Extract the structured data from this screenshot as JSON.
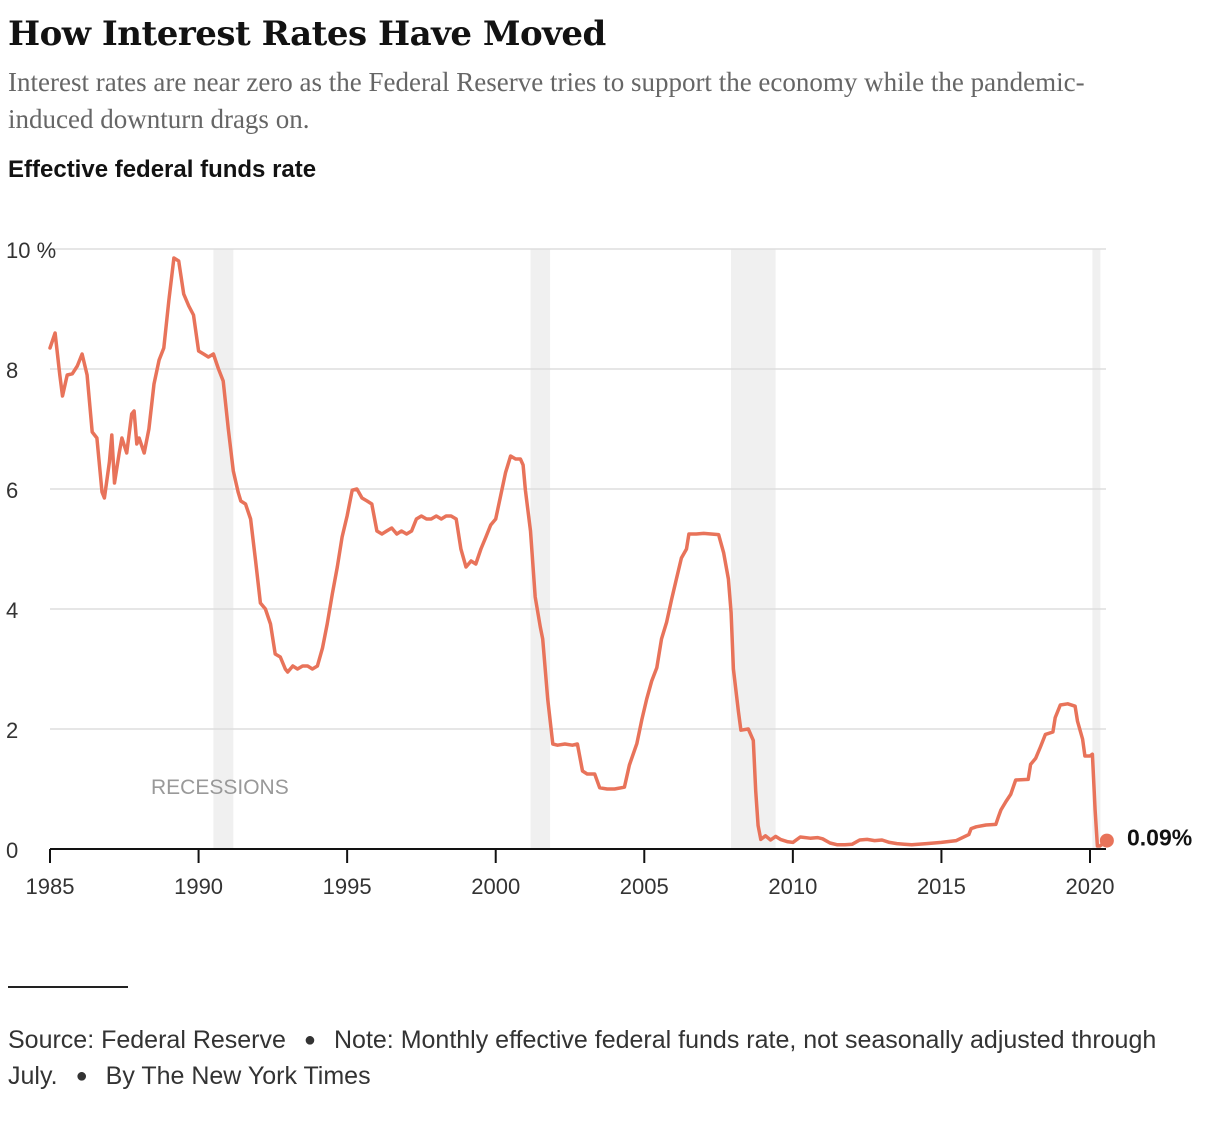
{
  "title": "How Interest Rates Have Moved",
  "subtitle": "Interest rates are near zero as the Federal Reserve tries to support the economy while the pandemic-induced downturn drags on.",
  "chart_label": "Effective federal funds rate",
  "footer": {
    "source": "Source: Federal Reserve",
    "note": "Note: Monthly effective federal funds rate, not seasonally adjusted through July.",
    "byline": "By The New York Times"
  },
  "colors": {
    "line": "#e8735a",
    "recession_band": "#f0f0f0",
    "grid": "#dddddd",
    "axis": "#121212"
  },
  "chart_data": {
    "type": "line",
    "title": "Effective federal funds rate",
    "xlabel": "",
    "ylabel": "",
    "xlim": [
      1985,
      2020.58
    ],
    "ylim": [
      0,
      10
    ],
    "x_ticks": [
      {
        "value": 1985,
        "label": "1985"
      },
      {
        "value": 1990,
        "label": "1990"
      },
      {
        "value": 1995,
        "label": "1995"
      },
      {
        "value": 2000,
        "label": "2000"
      },
      {
        "value": 2005,
        "label": "2005"
      },
      {
        "value": 2010,
        "label": "2010"
      },
      {
        "value": 2015,
        "label": "2015"
      },
      {
        "value": 2020,
        "label": "2020"
      }
    ],
    "y_ticks": [
      {
        "value": 0,
        "label": "0"
      },
      {
        "value": 2,
        "label": "2"
      },
      {
        "value": 4,
        "label": "4"
      },
      {
        "value": 6,
        "label": "6"
      },
      {
        "value": 8,
        "label": "8"
      },
      {
        "value": 10,
        "label": "10 %"
      }
    ],
    "grid": true,
    "recessions_label": "RECESSIONS",
    "recessions": [
      {
        "start": 1990.5,
        "end": 1991.17
      },
      {
        "start": 2001.17,
        "end": 2001.83
      },
      {
        "start": 2007.92,
        "end": 2009.42
      },
      {
        "start": 2020.08,
        "end": 2020.33
      }
    ],
    "end_label": "0.09%",
    "series": [
      {
        "points": [
          [
            1985.0,
            8.35
          ],
          [
            1985.17,
            8.6
          ],
          [
            1985.33,
            7.9
          ],
          [
            1985.42,
            7.55
          ],
          [
            1985.58,
            7.9
          ],
          [
            1985.75,
            7.92
          ],
          [
            1985.92,
            8.05
          ],
          [
            1986.08,
            8.25
          ],
          [
            1986.25,
            7.9
          ],
          [
            1986.42,
            6.95
          ],
          [
            1986.58,
            6.85
          ],
          [
            1986.75,
            5.95
          ],
          [
            1986.83,
            5.85
          ],
          [
            1987.0,
            6.45
          ],
          [
            1987.08,
            6.9
          ],
          [
            1987.17,
            6.1
          ],
          [
            1987.33,
            6.6
          ],
          [
            1987.42,
            6.85
          ],
          [
            1987.58,
            6.6
          ],
          [
            1987.75,
            7.25
          ],
          [
            1987.83,
            7.3
          ],
          [
            1987.92,
            6.75
          ],
          [
            1988.0,
            6.85
          ],
          [
            1988.17,
            6.6
          ],
          [
            1988.33,
            7.0
          ],
          [
            1988.5,
            7.75
          ],
          [
            1988.67,
            8.15
          ],
          [
            1988.83,
            8.35
          ],
          [
            1989.0,
            9.15
          ],
          [
            1989.17,
            9.85
          ],
          [
            1989.33,
            9.8
          ],
          [
            1989.5,
            9.25
          ],
          [
            1989.67,
            9.05
          ],
          [
            1989.83,
            8.9
          ],
          [
            1990.0,
            8.3
          ],
          [
            1990.17,
            8.25
          ],
          [
            1990.33,
            8.2
          ],
          [
            1990.5,
            8.25
          ],
          [
            1990.67,
            8.0
          ],
          [
            1990.83,
            7.8
          ],
          [
            1991.0,
            7.0
          ],
          [
            1991.17,
            6.3
          ],
          [
            1991.33,
            5.95
          ],
          [
            1991.42,
            5.8
          ],
          [
            1991.58,
            5.75
          ],
          [
            1991.75,
            5.5
          ],
          [
            1991.92,
            4.8
          ],
          [
            1992.08,
            4.1
          ],
          [
            1992.25,
            4.0
          ],
          [
            1992.42,
            3.75
          ],
          [
            1992.58,
            3.25
          ],
          [
            1992.75,
            3.2
          ],
          [
            1992.92,
            3.0
          ],
          [
            1993.0,
            2.95
          ],
          [
            1993.17,
            3.05
          ],
          [
            1993.33,
            3.0
          ],
          [
            1993.5,
            3.05
          ],
          [
            1993.67,
            3.05
          ],
          [
            1993.83,
            3.0
          ],
          [
            1994.0,
            3.05
          ],
          [
            1994.17,
            3.35
          ],
          [
            1994.33,
            3.75
          ],
          [
            1994.5,
            4.25
          ],
          [
            1994.67,
            4.7
          ],
          [
            1994.83,
            5.2
          ],
          [
            1995.0,
            5.55
          ],
          [
            1995.17,
            5.98
          ],
          [
            1995.33,
            6.0
          ],
          [
            1995.5,
            5.85
          ],
          [
            1995.67,
            5.8
          ],
          [
            1995.83,
            5.75
          ],
          [
            1996.0,
            5.3
          ],
          [
            1996.17,
            5.25
          ],
          [
            1996.33,
            5.3
          ],
          [
            1996.5,
            5.35
          ],
          [
            1996.67,
            5.25
          ],
          [
            1996.83,
            5.3
          ],
          [
            1997.0,
            5.25
          ],
          [
            1997.17,
            5.3
          ],
          [
            1997.33,
            5.5
          ],
          [
            1997.5,
            5.55
          ],
          [
            1997.67,
            5.5
          ],
          [
            1997.83,
            5.5
          ],
          [
            1998.0,
            5.55
          ],
          [
            1998.17,
            5.5
          ],
          [
            1998.33,
            5.55
          ],
          [
            1998.5,
            5.55
          ],
          [
            1998.67,
            5.5
          ],
          [
            1998.83,
            5.0
          ],
          [
            1999.0,
            4.7
          ],
          [
            1999.17,
            4.8
          ],
          [
            1999.33,
            4.75
          ],
          [
            1999.5,
            5.0
          ],
          [
            1999.67,
            5.2
          ],
          [
            1999.83,
            5.4
          ],
          [
            2000.0,
            5.5
          ],
          [
            2000.17,
            5.9
          ],
          [
            2000.33,
            6.27
          ],
          [
            2000.5,
            6.55
          ],
          [
            2000.67,
            6.5
          ],
          [
            2000.83,
            6.5
          ],
          [
            2000.92,
            6.4
          ],
          [
            2001.0,
            5.98
          ],
          [
            2001.17,
            5.3
          ],
          [
            2001.33,
            4.2
          ],
          [
            2001.5,
            3.7
          ],
          [
            2001.58,
            3.5
          ],
          [
            2001.75,
            2.5
          ],
          [
            2001.92,
            1.75
          ],
          [
            2002.08,
            1.73
          ],
          [
            2002.33,
            1.75
          ],
          [
            2002.58,
            1.73
          ],
          [
            2002.75,
            1.75
          ],
          [
            2002.92,
            1.3
          ],
          [
            2003.08,
            1.25
          ],
          [
            2003.33,
            1.25
          ],
          [
            2003.5,
            1.02
          ],
          [
            2003.75,
            1.0
          ],
          [
            2004.0,
            1.0
          ],
          [
            2004.33,
            1.03
          ],
          [
            2004.5,
            1.4
          ],
          [
            2004.75,
            1.76
          ],
          [
            2004.92,
            2.16
          ],
          [
            2005.08,
            2.5
          ],
          [
            2005.25,
            2.8
          ],
          [
            2005.42,
            3.02
          ],
          [
            2005.58,
            3.5
          ],
          [
            2005.75,
            3.78
          ],
          [
            2005.92,
            4.16
          ],
          [
            2006.08,
            4.5
          ],
          [
            2006.25,
            4.85
          ],
          [
            2006.42,
            5.0
          ],
          [
            2006.5,
            5.25
          ],
          [
            2006.75,
            5.25
          ],
          [
            2007.0,
            5.26
          ],
          [
            2007.25,
            5.25
          ],
          [
            2007.5,
            5.24
          ],
          [
            2007.67,
            4.94
          ],
          [
            2007.83,
            4.5
          ],
          [
            2007.92,
            3.94
          ],
          [
            2008.0,
            3.0
          ],
          [
            2008.17,
            2.28
          ],
          [
            2008.25,
            1.98
          ],
          [
            2008.5,
            2.0
          ],
          [
            2008.67,
            1.81
          ],
          [
            2008.75,
            0.97
          ],
          [
            2008.83,
            0.39
          ],
          [
            2008.92,
            0.16
          ],
          [
            2009.08,
            0.22
          ],
          [
            2009.25,
            0.15
          ],
          [
            2009.42,
            0.21
          ],
          [
            2009.58,
            0.16
          ],
          [
            2009.83,
            0.12
          ],
          [
            2010.0,
            0.11
          ],
          [
            2010.25,
            0.2
          ],
          [
            2010.58,
            0.18
          ],
          [
            2010.83,
            0.19
          ],
          [
            2011.0,
            0.17
          ],
          [
            2011.25,
            0.1
          ],
          [
            2011.5,
            0.07
          ],
          [
            2011.75,
            0.07
          ],
          [
            2012.0,
            0.08
          ],
          [
            2012.25,
            0.15
          ],
          [
            2012.5,
            0.16
          ],
          [
            2012.75,
            0.14
          ],
          [
            2013.0,
            0.15
          ],
          [
            2013.25,
            0.11
          ],
          [
            2013.5,
            0.09
          ],
          [
            2013.75,
            0.08
          ],
          [
            2014.0,
            0.07
          ],
          [
            2014.5,
            0.09
          ],
          [
            2015.0,
            0.11
          ],
          [
            2015.5,
            0.14
          ],
          [
            2015.92,
            0.24
          ],
          [
            2016.0,
            0.34
          ],
          [
            2016.17,
            0.37
          ],
          [
            2016.5,
            0.4
          ],
          [
            2016.83,
            0.41
          ],
          [
            2016.92,
            0.54
          ],
          [
            2017.0,
            0.65
          ],
          [
            2017.17,
            0.79
          ],
          [
            2017.33,
            0.91
          ],
          [
            2017.5,
            1.15
          ],
          [
            2017.92,
            1.16
          ],
          [
            2018.0,
            1.41
          ],
          [
            2018.17,
            1.51
          ],
          [
            2018.33,
            1.7
          ],
          [
            2018.5,
            1.91
          ],
          [
            2018.75,
            1.95
          ],
          [
            2018.83,
            2.19
          ],
          [
            2019.0,
            2.4
          ],
          [
            2019.25,
            2.42
          ],
          [
            2019.5,
            2.38
          ],
          [
            2019.58,
            2.13
          ],
          [
            2019.75,
            1.83
          ],
          [
            2019.83,
            1.55
          ],
          [
            2020.0,
            1.55
          ],
          [
            2020.08,
            1.58
          ],
          [
            2020.17,
            0.65
          ],
          [
            2020.25,
            0.05
          ],
          [
            2020.33,
            0.05
          ],
          [
            2020.42,
            0.08
          ],
          [
            2020.5,
            0.09
          ]
        ]
      }
    ]
  }
}
